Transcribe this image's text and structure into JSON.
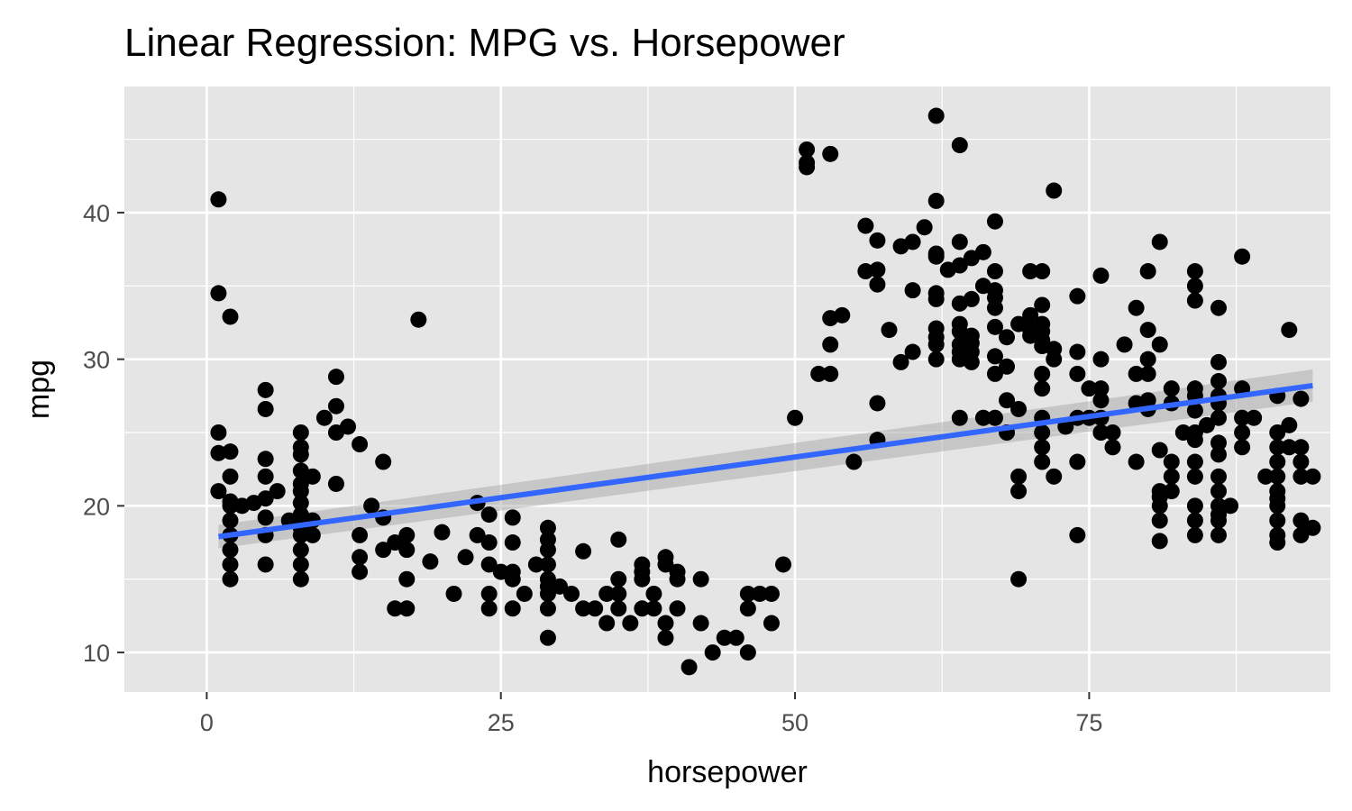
{
  "chart_data": {
    "type": "scatter",
    "title": "Linear Regression: MPG vs. Horsepower",
    "xlabel": "horsepower",
    "ylabel": "mpg",
    "xlim": [
      -7,
      95.5
    ],
    "ylim": [
      7.3,
      48.6
    ],
    "x_ticks": [
      0,
      25,
      50,
      75
    ],
    "x_tick_labels": [
      "0",
      "25",
      "50",
      "75"
    ],
    "y_ticks": [
      10,
      20,
      30,
      40
    ],
    "y_tick_labels": [
      "10",
      "20",
      "30",
      "40"
    ],
    "grid": true,
    "legend": "none",
    "colors": {
      "panel": "#e5e5e5",
      "grid": "#ffffff",
      "points": "#000000",
      "line": "#3366ff",
      "ribbon": "#999999",
      "tick_label": "#4d4d4d",
      "tick_mark": "#333333"
    },
    "regression": {
      "x": [
        1,
        94
      ],
      "y": [
        17.9,
        28.2
      ],
      "ci_lower": [
        17.1,
        27.1
      ],
      "ci_upper": [
        18.7,
        29.3
      ]
    },
    "points": [
      [
        1,
        40.9
      ],
      [
        1,
        34.5
      ],
      [
        1,
        25
      ],
      [
        1,
        23.6
      ],
      [
        1,
        21
      ],
      [
        2,
        32.9
      ],
      [
        2,
        23.7
      ],
      [
        2,
        22
      ],
      [
        2,
        20.3
      ],
      [
        2,
        20
      ],
      [
        2,
        19
      ],
      [
        2,
        18
      ],
      [
        2,
        17
      ],
      [
        2,
        16
      ],
      [
        2,
        15
      ],
      [
        3,
        20
      ],
      [
        4,
        20.2
      ],
      [
        5,
        27.9
      ],
      [
        5,
        26.6
      ],
      [
        5,
        23.2
      ],
      [
        5,
        22
      ],
      [
        5,
        20.5
      ],
      [
        5,
        19.2
      ],
      [
        5,
        18
      ],
      [
        5,
        16
      ],
      [
        6,
        21
      ],
      [
        7,
        19
      ],
      [
        8,
        25
      ],
      [
        8,
        24
      ],
      [
        8,
        23.5
      ],
      [
        8,
        22.4
      ],
      [
        8,
        21.5
      ],
      [
        8,
        21
      ],
      [
        8,
        20.2
      ],
      [
        8,
        19.4
      ],
      [
        8,
        18.5
      ],
      [
        8,
        18
      ],
      [
        8,
        17
      ],
      [
        8,
        16
      ],
      [
        8,
        15
      ],
      [
        9,
        22
      ],
      [
        9,
        19
      ],
      [
        9,
        18
      ],
      [
        10,
        26
      ],
      [
        11,
        28.8
      ],
      [
        11,
        26.8
      ],
      [
        11,
        25
      ],
      [
        11,
        21.5
      ],
      [
        12,
        25.4
      ],
      [
        13,
        24.2
      ],
      [
        13,
        18
      ],
      [
        13,
        16.5
      ],
      [
        13,
        15.5
      ],
      [
        14,
        20
      ],
      [
        15,
        23
      ],
      [
        15,
        19.2
      ],
      [
        15,
        17
      ],
      [
        16,
        17.5
      ],
      [
        16,
        13
      ],
      [
        17,
        18
      ],
      [
        17,
        17
      ],
      [
        17,
        15
      ],
      [
        17,
        13
      ],
      [
        18,
        32.7
      ],
      [
        19,
        16.2
      ],
      [
        20,
        18.2
      ],
      [
        21,
        14
      ],
      [
        22,
        16.5
      ],
      [
        23,
        20.2
      ],
      [
        23,
        18
      ],
      [
        24,
        19.4
      ],
      [
        24,
        17.5
      ],
      [
        24,
        16
      ],
      [
        24,
        14
      ],
      [
        24,
        13
      ],
      [
        25,
        15.5
      ],
      [
        26,
        19.2
      ],
      [
        26,
        17.5
      ],
      [
        26,
        15.5
      ],
      [
        26,
        15
      ],
      [
        26,
        13
      ],
      [
        27,
        14
      ],
      [
        28,
        16
      ],
      [
        29,
        18.5
      ],
      [
        29,
        17.7
      ],
      [
        29,
        17
      ],
      [
        29,
        16
      ],
      [
        29,
        15
      ],
      [
        29,
        14.5
      ],
      [
        29,
        14
      ],
      [
        29,
        13
      ],
      [
        29,
        11
      ],
      [
        30,
        14.5
      ],
      [
        31,
        14
      ],
      [
        32,
        16.9
      ],
      [
        32,
        13
      ],
      [
        33,
        13
      ],
      [
        34,
        14
      ],
      [
        34,
        12
      ],
      [
        35,
        17.7
      ],
      [
        35,
        15
      ],
      [
        35,
        14
      ],
      [
        35,
        13
      ],
      [
        36,
        12
      ],
      [
        37,
        16
      ],
      [
        37,
        15.5
      ],
      [
        37,
        15
      ],
      [
        37,
        13
      ],
      [
        38,
        14
      ],
      [
        38,
        13
      ],
      [
        39,
        16.5
      ],
      [
        39,
        16
      ],
      [
        39,
        12
      ],
      [
        39,
        11
      ],
      [
        40,
        15.5
      ],
      [
        40,
        15
      ],
      [
        40,
        13
      ],
      [
        41,
        9
      ],
      [
        42,
        15
      ],
      [
        42,
        12
      ],
      [
        43,
        10
      ],
      [
        44,
        11
      ],
      [
        45,
        11
      ],
      [
        46,
        14
      ],
      [
        46,
        13
      ],
      [
        46,
        10
      ],
      [
        47,
        14
      ],
      [
        48,
        14
      ],
      [
        48,
        12
      ],
      [
        49,
        16
      ],
      [
        50,
        26
      ],
      [
        51,
        44.3
      ],
      [
        51,
        43.4
      ],
      [
        51,
        43.1
      ],
      [
        53,
        44
      ],
      [
        53,
        32.8
      ],
      [
        53,
        31
      ],
      [
        53,
        29
      ],
      [
        52,
        29
      ],
      [
        54,
        33
      ],
      [
        55,
        23
      ],
      [
        56,
        39.1
      ],
      [
        56,
        36
      ],
      [
        57,
        38.1
      ],
      [
        57,
        36.1
      ],
      [
        57,
        35.1
      ],
      [
        57,
        27
      ],
      [
        57,
        24.5
      ],
      [
        58,
        32
      ],
      [
        59,
        37.7
      ],
      [
        59,
        29.8
      ],
      [
        60,
        38
      ],
      [
        60,
        34.7
      ],
      [
        60,
        30.5
      ],
      [
        61,
        39
      ],
      [
        62,
        46.6
      ],
      [
        62,
        40.8
      ],
      [
        62,
        37.2
      ],
      [
        62,
        37
      ],
      [
        62,
        34.5
      ],
      [
        62,
        34.1
      ],
      [
        62,
        32.1
      ],
      [
        62,
        31.5
      ],
      [
        62,
        31
      ],
      [
        62,
        30
      ],
      [
        63,
        36.1
      ],
      [
        64,
        44.6
      ],
      [
        64,
        38
      ],
      [
        64,
        36.4
      ],
      [
        64,
        33.8
      ],
      [
        64,
        32.4
      ],
      [
        64,
        31.9
      ],
      [
        64,
        31
      ],
      [
        64,
        30.5
      ],
      [
        64,
        30
      ],
      [
        64,
        26
      ],
      [
        65,
        36.9
      ],
      [
        65,
        34.1
      ],
      [
        65,
        31.6
      ],
      [
        65,
        31.1
      ],
      [
        65,
        30.5
      ],
      [
        65,
        29.8
      ],
      [
        66,
        37.3
      ],
      [
        66,
        35
      ],
      [
        66,
        26
      ],
      [
        67,
        39.4
      ],
      [
        67,
        36
      ],
      [
        67,
        34.7
      ],
      [
        67,
        34.2
      ],
      [
        67,
        33.5
      ],
      [
        67,
        32.2
      ],
      [
        67,
        30.2
      ],
      [
        67,
        29
      ],
      [
        67,
        26
      ],
      [
        68,
        31.5
      ],
      [
        68,
        29.5
      ],
      [
        68,
        27.2
      ],
      [
        68,
        25
      ],
      [
        69,
        32.4
      ],
      [
        69,
        26.6
      ],
      [
        69,
        22
      ],
      [
        69,
        21
      ],
      [
        69,
        15
      ],
      [
        70,
        36
      ],
      [
        70,
        33
      ],
      [
        70,
        32
      ],
      [
        70,
        31.6
      ],
      [
        71,
        36
      ],
      [
        71,
        33.7
      ],
      [
        71,
        32.4
      ],
      [
        71,
        31.9
      ],
      [
        71,
        31.3
      ],
      [
        71,
        30.9
      ],
      [
        71,
        29
      ],
      [
        71,
        28
      ],
      [
        71,
        26
      ],
      [
        71,
        25
      ],
      [
        71,
        24
      ],
      [
        71,
        23
      ],
      [
        72,
        41.5
      ],
      [
        72,
        30.7
      ],
      [
        72,
        30
      ],
      [
        72,
        22
      ],
      [
        73,
        25.4
      ],
      [
        74,
        34.3
      ],
      [
        74,
        30.5
      ],
      [
        74,
        29
      ],
      [
        74,
        26
      ],
      [
        74,
        23
      ],
      [
        74,
        18
      ],
      [
        75,
        28
      ],
      [
        75,
        26
      ],
      [
        76,
        35.7
      ],
      [
        76,
        30
      ],
      [
        76,
        28
      ],
      [
        76,
        27.2
      ],
      [
        76,
        26
      ],
      [
        76,
        25
      ],
      [
        77,
        25
      ],
      [
        77,
        24
      ],
      [
        78,
        31
      ],
      [
        79,
        33.5
      ],
      [
        79,
        29
      ],
      [
        79,
        27
      ],
      [
        79,
        23
      ],
      [
        80,
        36
      ],
      [
        80,
        32
      ],
      [
        80,
        30
      ],
      [
        80,
        29
      ],
      [
        80,
        27.2
      ],
      [
        80,
        26.6
      ],
      [
        81,
        38
      ],
      [
        81,
        31
      ],
      [
        81,
        23.8
      ],
      [
        81,
        21
      ],
      [
        81,
        20.6
      ],
      [
        81,
        20
      ],
      [
        81,
        19
      ],
      [
        81,
        17.6
      ],
      [
        82,
        28
      ],
      [
        82,
        27
      ],
      [
        82,
        23
      ],
      [
        82,
        22
      ],
      [
        82,
        21
      ],
      [
        83,
        25
      ],
      [
        84,
        36
      ],
      [
        84,
        35
      ],
      [
        84,
        34
      ],
      [
        84,
        28
      ],
      [
        84,
        27.5
      ],
      [
        84,
        26.5
      ],
      [
        84,
        25
      ],
      [
        84,
        24.5
      ],
      [
        84,
        23
      ],
      [
        84,
        22
      ],
      [
        84,
        20
      ],
      [
        84,
        19
      ],
      [
        84,
        18
      ],
      [
        85,
        25.5
      ],
      [
        86,
        33.5
      ],
      [
        86,
        29.8
      ],
      [
        86,
        28.5
      ],
      [
        86,
        27.5
      ],
      [
        86,
        27
      ],
      [
        86,
        26
      ],
      [
        86,
        24.3
      ],
      [
        86,
        23.5
      ],
      [
        86,
        22
      ],
      [
        86,
        21
      ],
      [
        86,
        20
      ],
      [
        86,
        19.4
      ],
      [
        86,
        19
      ],
      [
        86,
        18
      ],
      [
        87,
        20
      ],
      [
        88,
        37
      ],
      [
        88,
        28
      ],
      [
        88,
        26
      ],
      [
        88,
        25
      ],
      [
        88,
        24
      ],
      [
        89,
        26
      ],
      [
        90,
        22
      ],
      [
        91,
        27.5
      ],
      [
        91,
        25
      ],
      [
        91,
        24
      ],
      [
        91,
        23
      ],
      [
        91,
        22
      ],
      [
        91,
        21
      ],
      [
        91,
        20.5
      ],
      [
        91,
        20
      ],
      [
        91,
        19
      ],
      [
        91,
        18
      ],
      [
        91,
        17.5
      ],
      [
        92,
        32
      ],
      [
        92,
        25.5
      ],
      [
        92,
        24
      ],
      [
        93,
        27.3
      ],
      [
        93,
        24
      ],
      [
        93,
        23
      ],
      [
        93,
        22
      ],
      [
        93,
        19
      ],
      [
        93,
        18
      ],
      [
        94,
        22
      ],
      [
        94,
        18.5
      ]
    ]
  }
}
